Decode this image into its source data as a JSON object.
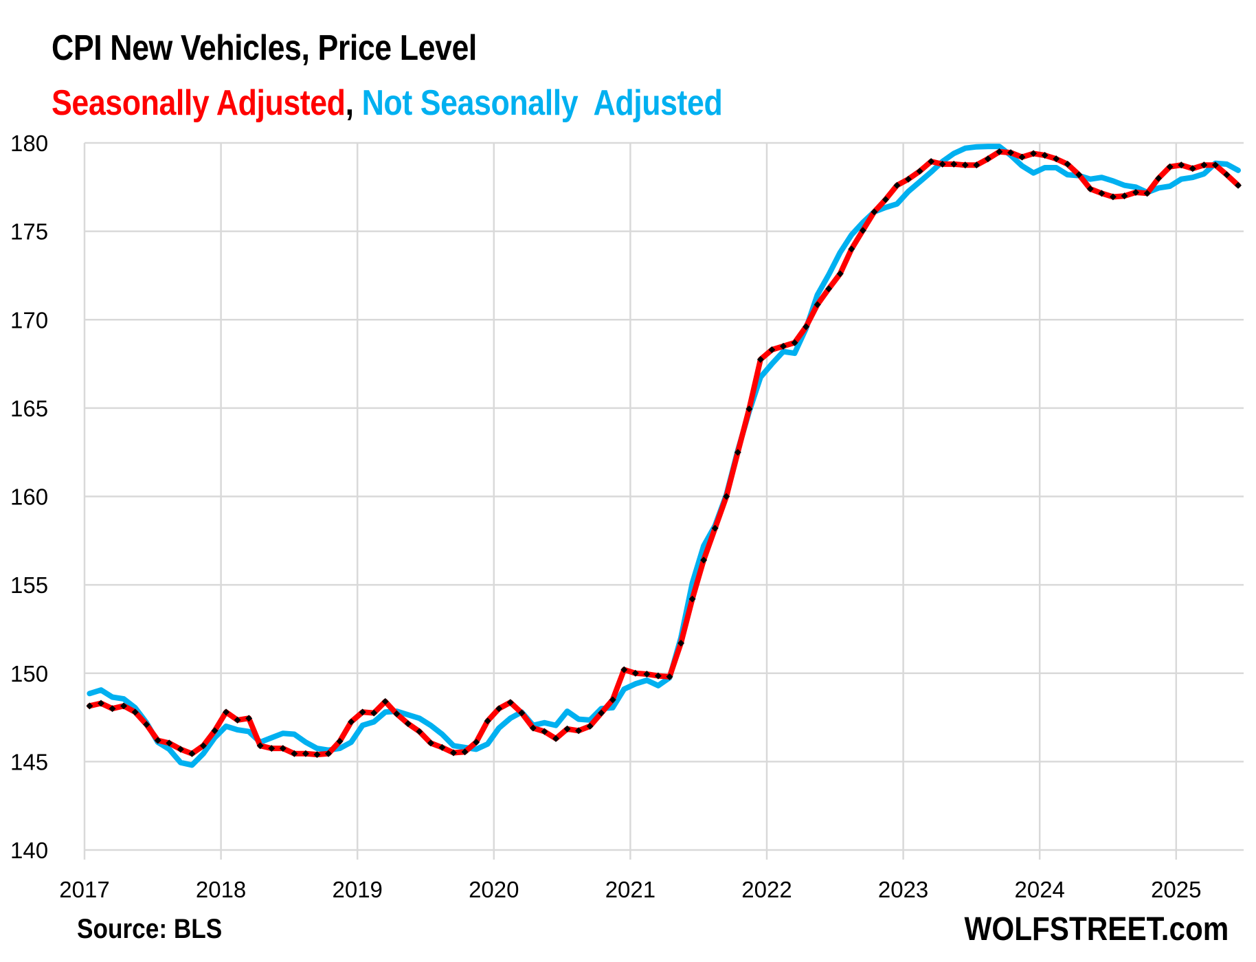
{
  "chart_data": {
    "type": "line",
    "title": "CPI New Vehicles, Price Level",
    "subtitle": {
      "part1": "Seasonally Adjusted",
      "separator": ",",
      "part2": "Not Seasonally  Adjusted"
    },
    "xlabel": "",
    "ylabel": "",
    "ylim": [
      140,
      180
    ],
    "yticks": [
      "140",
      "145",
      "150",
      "155",
      "160",
      "165",
      "170",
      "175",
      "180"
    ],
    "ytick_values": [
      140,
      145,
      150,
      155,
      160,
      165,
      170,
      175,
      180
    ],
    "xticks": [
      "2017",
      "2018",
      "2019",
      "2020",
      "2021",
      "2022",
      "2023",
      "2024",
      "2025"
    ],
    "x_start": "2017-01",
    "x_end": "2025-06",
    "x_frequency": "monthly",
    "grid": true,
    "legend": "none (series identified by colored subtitle text)",
    "series": [
      {
        "name": "Not Seasonally Adjusted",
        "color": "#00B0F0",
        "marker": "none",
        "values": [
          148.85,
          149.05,
          148.65,
          148.55,
          148.05,
          147.2,
          146.1,
          145.7,
          144.95,
          144.8,
          145.45,
          146.35,
          147.0,
          146.8,
          146.7,
          146.1,
          146.35,
          146.6,
          146.55,
          146.1,
          145.75,
          145.65,
          145.75,
          146.1,
          147.05,
          147.25,
          147.8,
          147.85,
          147.65,
          147.45,
          147.05,
          146.55,
          145.9,
          145.8,
          145.7,
          146.0,
          146.9,
          147.45,
          147.8,
          147.05,
          147.2,
          147.05,
          147.85,
          147.4,
          147.35,
          148.0,
          148.05,
          149.1,
          149.4,
          149.6,
          149.3,
          149.75,
          152.0,
          155.1,
          157.2,
          158.35,
          160.1,
          162.6,
          164.8,
          166.75,
          167.5,
          168.2,
          168.1,
          169.5,
          171.4,
          172.55,
          173.8,
          174.8,
          175.5,
          176.1,
          176.35,
          176.55,
          177.25,
          177.8,
          178.35,
          178.95,
          179.4,
          179.7,
          179.78,
          179.8,
          179.8,
          179.3,
          178.7,
          178.3,
          178.6,
          178.6,
          178.2,
          178.15,
          177.95,
          178.05,
          177.85,
          177.6,
          177.5,
          177.2,
          177.45,
          177.55,
          177.95,
          178.05,
          178.25,
          178.85,
          178.8,
          178.45
        ]
      },
      {
        "name": "Seasonally Adjusted",
        "color": "#FF0000",
        "marker": "black diamond",
        "values": [
          148.15,
          148.3,
          148.0,
          148.15,
          147.8,
          147.1,
          146.2,
          146.05,
          145.7,
          145.45,
          145.9,
          146.75,
          147.8,
          147.35,
          147.45,
          145.9,
          145.75,
          145.75,
          145.45,
          145.45,
          145.4,
          145.45,
          146.15,
          147.25,
          147.8,
          147.75,
          148.4,
          147.7,
          147.15,
          146.7,
          146.05,
          145.8,
          145.5,
          145.55,
          146.1,
          147.3,
          148.0,
          148.35,
          147.75,
          146.9,
          146.7,
          146.3,
          146.85,
          146.75,
          147.0,
          147.75,
          148.5,
          150.2,
          150.0,
          149.95,
          149.85,
          149.8,
          151.7,
          154.2,
          156.4,
          158.2,
          160.0,
          162.5,
          164.95,
          167.75,
          168.3,
          168.5,
          168.7,
          169.6,
          170.85,
          171.75,
          172.6,
          174.0,
          175.05,
          176.1,
          176.8,
          177.6,
          177.95,
          178.4,
          178.95,
          178.8,
          178.8,
          178.75,
          178.75,
          179.1,
          179.5,
          179.45,
          179.2,
          179.4,
          179.3,
          179.1,
          178.8,
          178.2,
          177.4,
          177.15,
          176.95,
          177.0,
          177.2,
          177.15,
          178.0,
          178.65,
          178.75,
          178.55,
          178.75,
          178.75,
          178.2,
          177.6
        ]
      }
    ],
    "annotations": [
      "Source: BLS",
      "WOLFSTREET.com"
    ]
  },
  "footer": {
    "source": "Source: BLS",
    "brand": "WOLFSTREET.com"
  }
}
